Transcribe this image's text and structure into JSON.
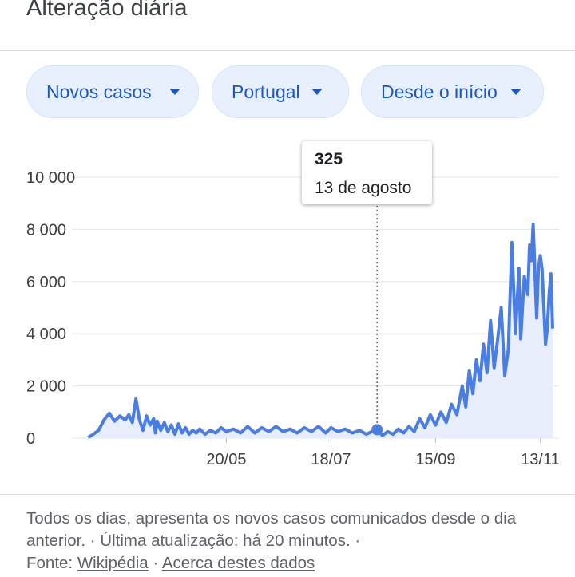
{
  "header": {
    "title": "Alteração diária"
  },
  "filters": {
    "metric": {
      "label": "Novos casos",
      "icon": "dropdown-arrow-icon"
    },
    "region": {
      "label": "Portugal",
      "icon": "dropdown-arrow-icon"
    },
    "period": {
      "label": "Desde o início",
      "icon": "dropdown-arrow-icon"
    }
  },
  "tooltip": {
    "value": "325",
    "date": "13 de agosto"
  },
  "footer": {
    "description": "Todos os dias, apresenta os novos casos comunicados desde o dia anterior. · Última atualização: há 20 minutos.",
    "separator": "·",
    "source_prefix": "Fonte:",
    "source_link": "Wikipédia",
    "about_link": "Acerca destes dados"
  },
  "colors": {
    "line": "#4a7ee3",
    "area": "#e8eefc",
    "accent_chip": "#1a57c4",
    "grid": "#e6e6e6"
  },
  "chart_data": {
    "type": "area",
    "ylim": [
      0,
      10000
    ],
    "yticks": [
      0,
      2000,
      4000,
      6000,
      8000,
      10000
    ],
    "ytick_labels": [
      "0",
      "2 000",
      "4 000",
      "6 000",
      "8 000",
      "10 000"
    ],
    "xlim": [
      "2020-03-02",
      "2020-11-20"
    ],
    "xticks": [
      "2020-05-20",
      "2020-07-18",
      "2020-09-15",
      "2020-11-13"
    ],
    "xtick_labels": [
      "20/05",
      "18/07",
      "15/09",
      "13/11"
    ],
    "highlight": {
      "x": "2020-08-13",
      "y": 325
    },
    "grid": true,
    "series": [
      {
        "x": [
          "2020-03-03",
          "2020-03-06",
          "2020-03-09",
          "2020-03-12",
          "2020-03-15",
          "2020-03-18",
          "2020-03-21",
          "2020-03-24",
          "2020-03-26",
          "2020-03-28",
          "2020-03-30",
          "2020-04-01",
          "2020-04-03",
          "2020-04-05",
          "2020-04-07",
          "2020-04-09",
          "2020-04-10",
          "2020-04-11",
          "2020-04-13",
          "2020-04-15",
          "2020-04-17",
          "2020-04-19",
          "2020-04-21",
          "2020-04-23",
          "2020-04-25",
          "2020-04-27",
          "2020-04-29",
          "2020-05-01",
          "2020-05-03",
          "2020-05-05",
          "2020-05-08",
          "2020-05-11",
          "2020-05-14",
          "2020-05-17",
          "2020-05-20",
          "2020-05-24",
          "2020-05-28",
          "2020-06-01",
          "2020-06-05",
          "2020-06-09",
          "2020-06-13",
          "2020-06-17",
          "2020-06-21",
          "2020-06-25",
          "2020-06-29",
          "2020-07-03",
          "2020-07-07",
          "2020-07-11",
          "2020-07-15",
          "2020-07-18",
          "2020-07-22",
          "2020-07-26",
          "2020-07-30",
          "2020-08-03",
          "2020-08-07",
          "2020-08-10",
          "2020-08-13",
          "2020-08-16",
          "2020-08-19",
          "2020-08-22",
          "2020-08-25",
          "2020-08-28",
          "2020-08-31",
          "2020-09-03",
          "2020-09-06",
          "2020-09-09",
          "2020-09-12",
          "2020-09-15",
          "2020-09-18",
          "2020-09-21",
          "2020-09-24",
          "2020-09-27",
          "2020-09-30",
          "2020-10-02",
          "2020-10-04",
          "2020-10-06",
          "2020-10-08",
          "2020-10-10",
          "2020-10-12",
          "2020-10-14",
          "2020-10-16",
          "2020-10-18",
          "2020-10-20",
          "2020-10-22",
          "2020-10-24",
          "2020-10-26",
          "2020-10-28",
          "2020-10-30",
          "2020-11-01",
          "2020-11-02",
          "2020-11-04",
          "2020-11-06",
          "2020-11-07",
          "2020-11-08",
          "2020-11-09",
          "2020-11-11",
          "2020-11-12",
          "2020-11-13",
          "2020-11-14",
          "2020-11-16",
          "2020-11-17",
          "2020-11-18",
          "2020-11-19",
          "2020-11-20"
        ],
        "y": [
          20,
          150,
          300,
          700,
          950,
          650,
          850,
          700,
          900,
          600,
          1500,
          700,
          300,
          850,
          500,
          750,
          200,
          650,
          300,
          600,
          250,
          500,
          150,
          550,
          200,
          400,
          150,
          300,
          200,
          350,
          150,
          300,
          200,
          400,
          250,
          350,
          200,
          450,
          200,
          400,
          250,
          450,
          250,
          350,
          200,
          400,
          250,
          450,
          200,
          400,
          250,
          350,
          200,
          300,
          150,
          250,
          325,
          100,
          250,
          150,
          350,
          200,
          450,
          250,
          750,
          400,
          900,
          500,
          1000,
          600,
          1300,
          900,
          2000,
          1200,
          2600,
          1700,
          3000,
          2200,
          3600,
          2500,
          4500,
          2700,
          3800,
          5000,
          2400,
          3400,
          7500,
          4000,
          6500,
          3800,
          6200,
          5500,
          7400,
          6800,
          8200,
          4600,
          6500,
          7000,
          6500,
          3600,
          4200,
          5500,
          6300,
          4200
        ]
      }
    ]
  }
}
